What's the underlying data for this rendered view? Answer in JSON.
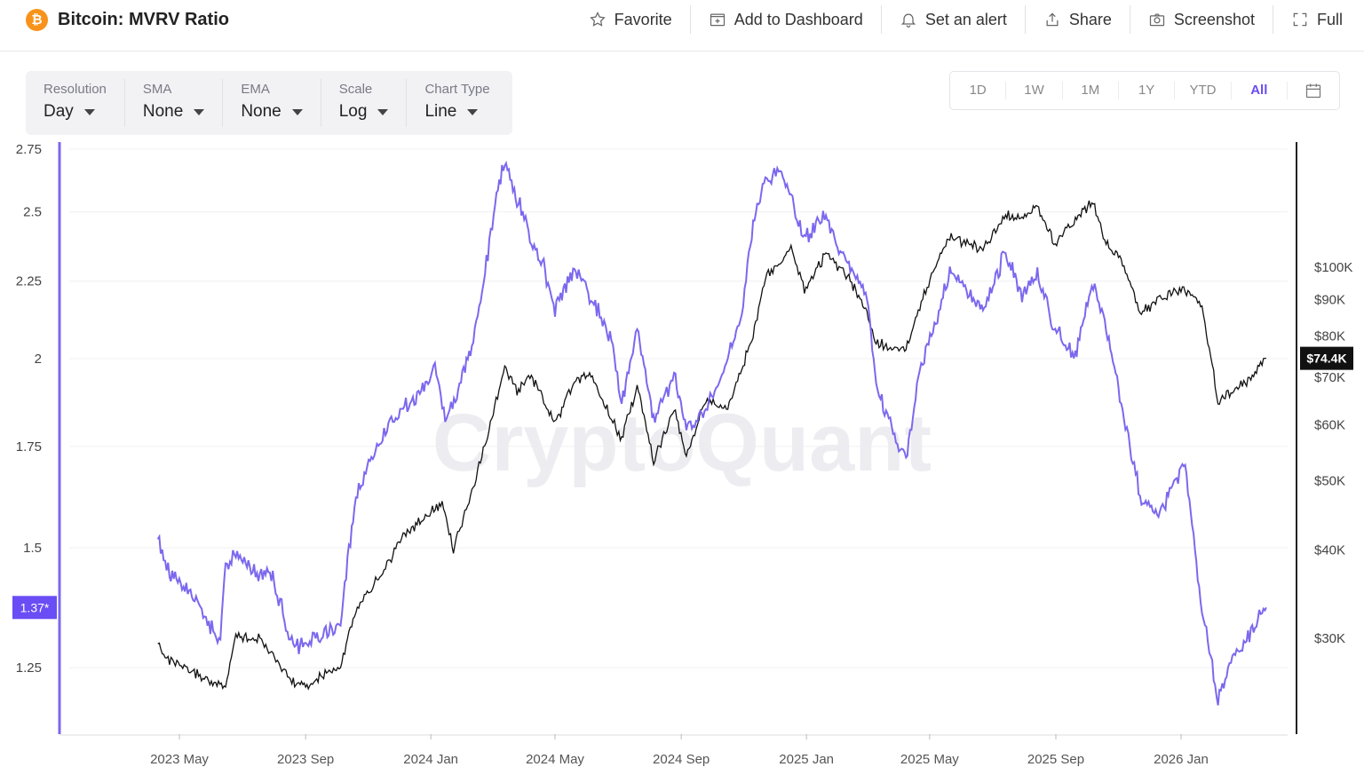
{
  "header": {
    "logo_glyph": "₿",
    "title": "Bitcoin: MVRV Ratio",
    "actions": [
      {
        "label": "Favorite",
        "icon": "star-icon"
      },
      {
        "label": "Add to Dashboard",
        "icon": "dashboard-add-icon"
      },
      {
        "label": "Set an alert",
        "icon": "bell-icon"
      },
      {
        "label": "Share",
        "icon": "share-icon"
      },
      {
        "label": "Screenshot",
        "icon": "camera-icon"
      },
      {
        "label": "Full",
        "icon": "fullscreen-icon"
      }
    ]
  },
  "controls": [
    {
      "label": "Resolution",
      "value": "Day"
    },
    {
      "label": "SMA",
      "value": "None"
    },
    {
      "label": "EMA",
      "value": "None"
    },
    {
      "label": "Scale",
      "value": "Log"
    },
    {
      "label": "Chart Type",
      "value": "Line"
    }
  ],
  "ranges": {
    "items": [
      "1D",
      "1W",
      "1M",
      "1Y",
      "YTD",
      "All"
    ],
    "active": "All"
  },
  "colors": {
    "mvrv": "#7b68ee",
    "price": "#111111",
    "accent": "#6a4df4",
    "brand": "#f7931a"
  },
  "chart_data": {
    "type": "line",
    "watermark": "CryptoQuant",
    "x_ticks": [
      "2023 May",
      "2023 Sep",
      "2024 Jan",
      "2024 May",
      "2024 Sep",
      "2025 Jan",
      "2025 May",
      "2025 Sep",
      "2026 Jan"
    ],
    "y_left_ticks": [
      2.75,
      2.5,
      2.25,
      2,
      1.75,
      1.5,
      1.25
    ],
    "y_left_ticks_text": [
      "2.75",
      "2.5",
      "2.25",
      "2",
      "1.75",
      "1.5",
      "1.25"
    ],
    "y_left_scale": "log",
    "y_left_range": [
      1.13,
      2.78
    ],
    "y_right_ticks": [
      100000,
      90000,
      80000,
      70000,
      60000,
      50000,
      40000,
      30000
    ],
    "y_right_ticks_text": [
      "$100K",
      "$90K",
      "$80K",
      "$70K",
      "$60K",
      "$50K",
      "$40K",
      "$30K"
    ],
    "y_right_scale": "log",
    "y_right_range": [
      22000,
      150000
    ],
    "current_mvrv_label": "1.37*",
    "current_price_label": "$74.4K",
    "series": [
      {
        "key": "mvrv",
        "axis": "left",
        "dates": [
          "2023-04-10",
          "2023-04-20",
          "2023-05-05",
          "2023-05-20",
          "2023-06-10",
          "2023-06-15",
          "2023-06-25",
          "2023-07-10",
          "2023-07-31",
          "2023-08-20",
          "2023-09-05",
          "2023-09-15",
          "2023-10-05",
          "2023-10-20",
          "2023-10-31",
          "2023-11-15",
          "2023-12-05",
          "2023-12-20",
          "2024-01-05",
          "2024-01-15",
          "2024-01-25",
          "2024-02-10",
          "2024-02-20",
          "2024-03-05",
          "2024-03-13",
          "2024-03-25",
          "2024-04-08",
          "2024-04-20",
          "2024-05-01",
          "2024-05-20",
          "2024-06-05",
          "2024-06-25",
          "2024-07-05",
          "2024-07-20",
          "2024-08-05",
          "2024-08-25",
          "2024-09-06",
          "2024-09-25",
          "2024-10-15",
          "2024-10-30",
          "2024-11-10",
          "2024-11-22",
          "2024-12-05",
          "2024-12-17",
          "2024-12-30",
          "2025-01-20",
          "2025-02-10",
          "2025-03-01",
          "2025-03-10",
          "2025-03-25",
          "2025-04-08",
          "2025-04-20",
          "2025-05-10",
          "2025-05-22",
          "2025-06-10",
          "2025-06-22",
          "2025-07-14",
          "2025-07-30",
          "2025-08-14",
          "2025-08-30",
          "2025-09-20",
          "2025-10-06",
          "2025-10-20",
          "2025-11-05",
          "2025-11-22",
          "2025-12-10",
          "2026-01-05",
          "2026-01-20",
          "2026-02-06",
          "2026-02-20",
          "2026-03-10",
          "2026-03-25"
        ],
        "values": [
          1.52,
          1.45,
          1.42,
          1.37,
          1.3,
          1.46,
          1.49,
          1.45,
          1.43,
          1.29,
          1.3,
          1.31,
          1.34,
          1.62,
          1.7,
          1.78,
          1.86,
          1.89,
          1.97,
          1.82,
          1.88,
          2.05,
          2.2,
          2.56,
          2.7,
          2.55,
          2.4,
          2.3,
          2.15,
          2.3,
          2.2,
          2.05,
          1.87,
          2.1,
          1.82,
          1.95,
          1.8,
          1.85,
          1.98,
          2.15,
          2.45,
          2.62,
          2.66,
          2.55,
          2.4,
          2.48,
          2.3,
          2.2,
          1.92,
          1.8,
          1.71,
          1.95,
          2.15,
          2.3,
          2.2,
          2.15,
          2.35,
          2.2,
          2.28,
          2.1,
          2.0,
          2.25,
          2.1,
          1.85,
          1.62,
          1.58,
          1.7,
          1.38,
          1.19,
          1.27,
          1.32,
          1.37
        ]
      },
      {
        "key": "price",
        "axis": "right",
        "dates": [
          "2023-04-10",
          "2023-04-20",
          "2023-05-10",
          "2023-06-15",
          "2023-06-25",
          "2023-07-20",
          "2023-08-20",
          "2023-09-05",
          "2023-10-05",
          "2023-10-20",
          "2023-10-31",
          "2023-11-15",
          "2023-12-05",
          "2023-12-20",
          "2024-01-12",
          "2024-01-23",
          "2024-02-10",
          "2024-02-28",
          "2024-03-13",
          "2024-03-25",
          "2024-04-08",
          "2024-04-20",
          "2024-05-01",
          "2024-05-20",
          "2024-06-05",
          "2024-06-25",
          "2024-07-05",
          "2024-07-20",
          "2024-08-05",
          "2024-08-25",
          "2024-09-06",
          "2024-09-25",
          "2024-10-15",
          "2024-10-30",
          "2024-11-10",
          "2024-11-22",
          "2024-12-05",
          "2024-12-17",
          "2024-12-30",
          "2025-01-20",
          "2025-02-10",
          "2025-03-01",
          "2025-03-10",
          "2025-04-08",
          "2025-04-20",
          "2025-05-10",
          "2025-05-22",
          "2025-06-22",
          "2025-07-14",
          "2025-07-30",
          "2025-08-14",
          "2025-08-30",
          "2025-09-20",
          "2025-10-06",
          "2025-10-20",
          "2025-11-05",
          "2025-11-22",
          "2025-12-10",
          "2026-01-05",
          "2026-01-20",
          "2026-02-06",
          "2026-02-20",
          "2026-03-10",
          "2026-03-25"
        ],
        "values": [
          29500,
          28000,
          27000,
          25500,
          30500,
          29800,
          26000,
          25800,
          27500,
          33000,
          35000,
          37000,
          42000,
          43500,
          46500,
          40000,
          48000,
          60000,
          71500,
          67000,
          70000,
          65000,
          60000,
          69000,
          70500,
          61000,
          57000,
          68000,
          53000,
          63000,
          54000,
          65000,
          63000,
          72000,
          80000,
          97000,
          101000,
          106000,
          93000,
          104000,
          97000,
          86000,
          78000,
          76500,
          87000,
          103000,
          110000,
          106000,
          118000,
          117000,
          122000,
          108000,
          116000,
          124000,
          108000,
          101000,
          86000,
          90000,
          93000,
          89000,
          64000,
          67000,
          70000,
          74400
        ]
      }
    ]
  }
}
